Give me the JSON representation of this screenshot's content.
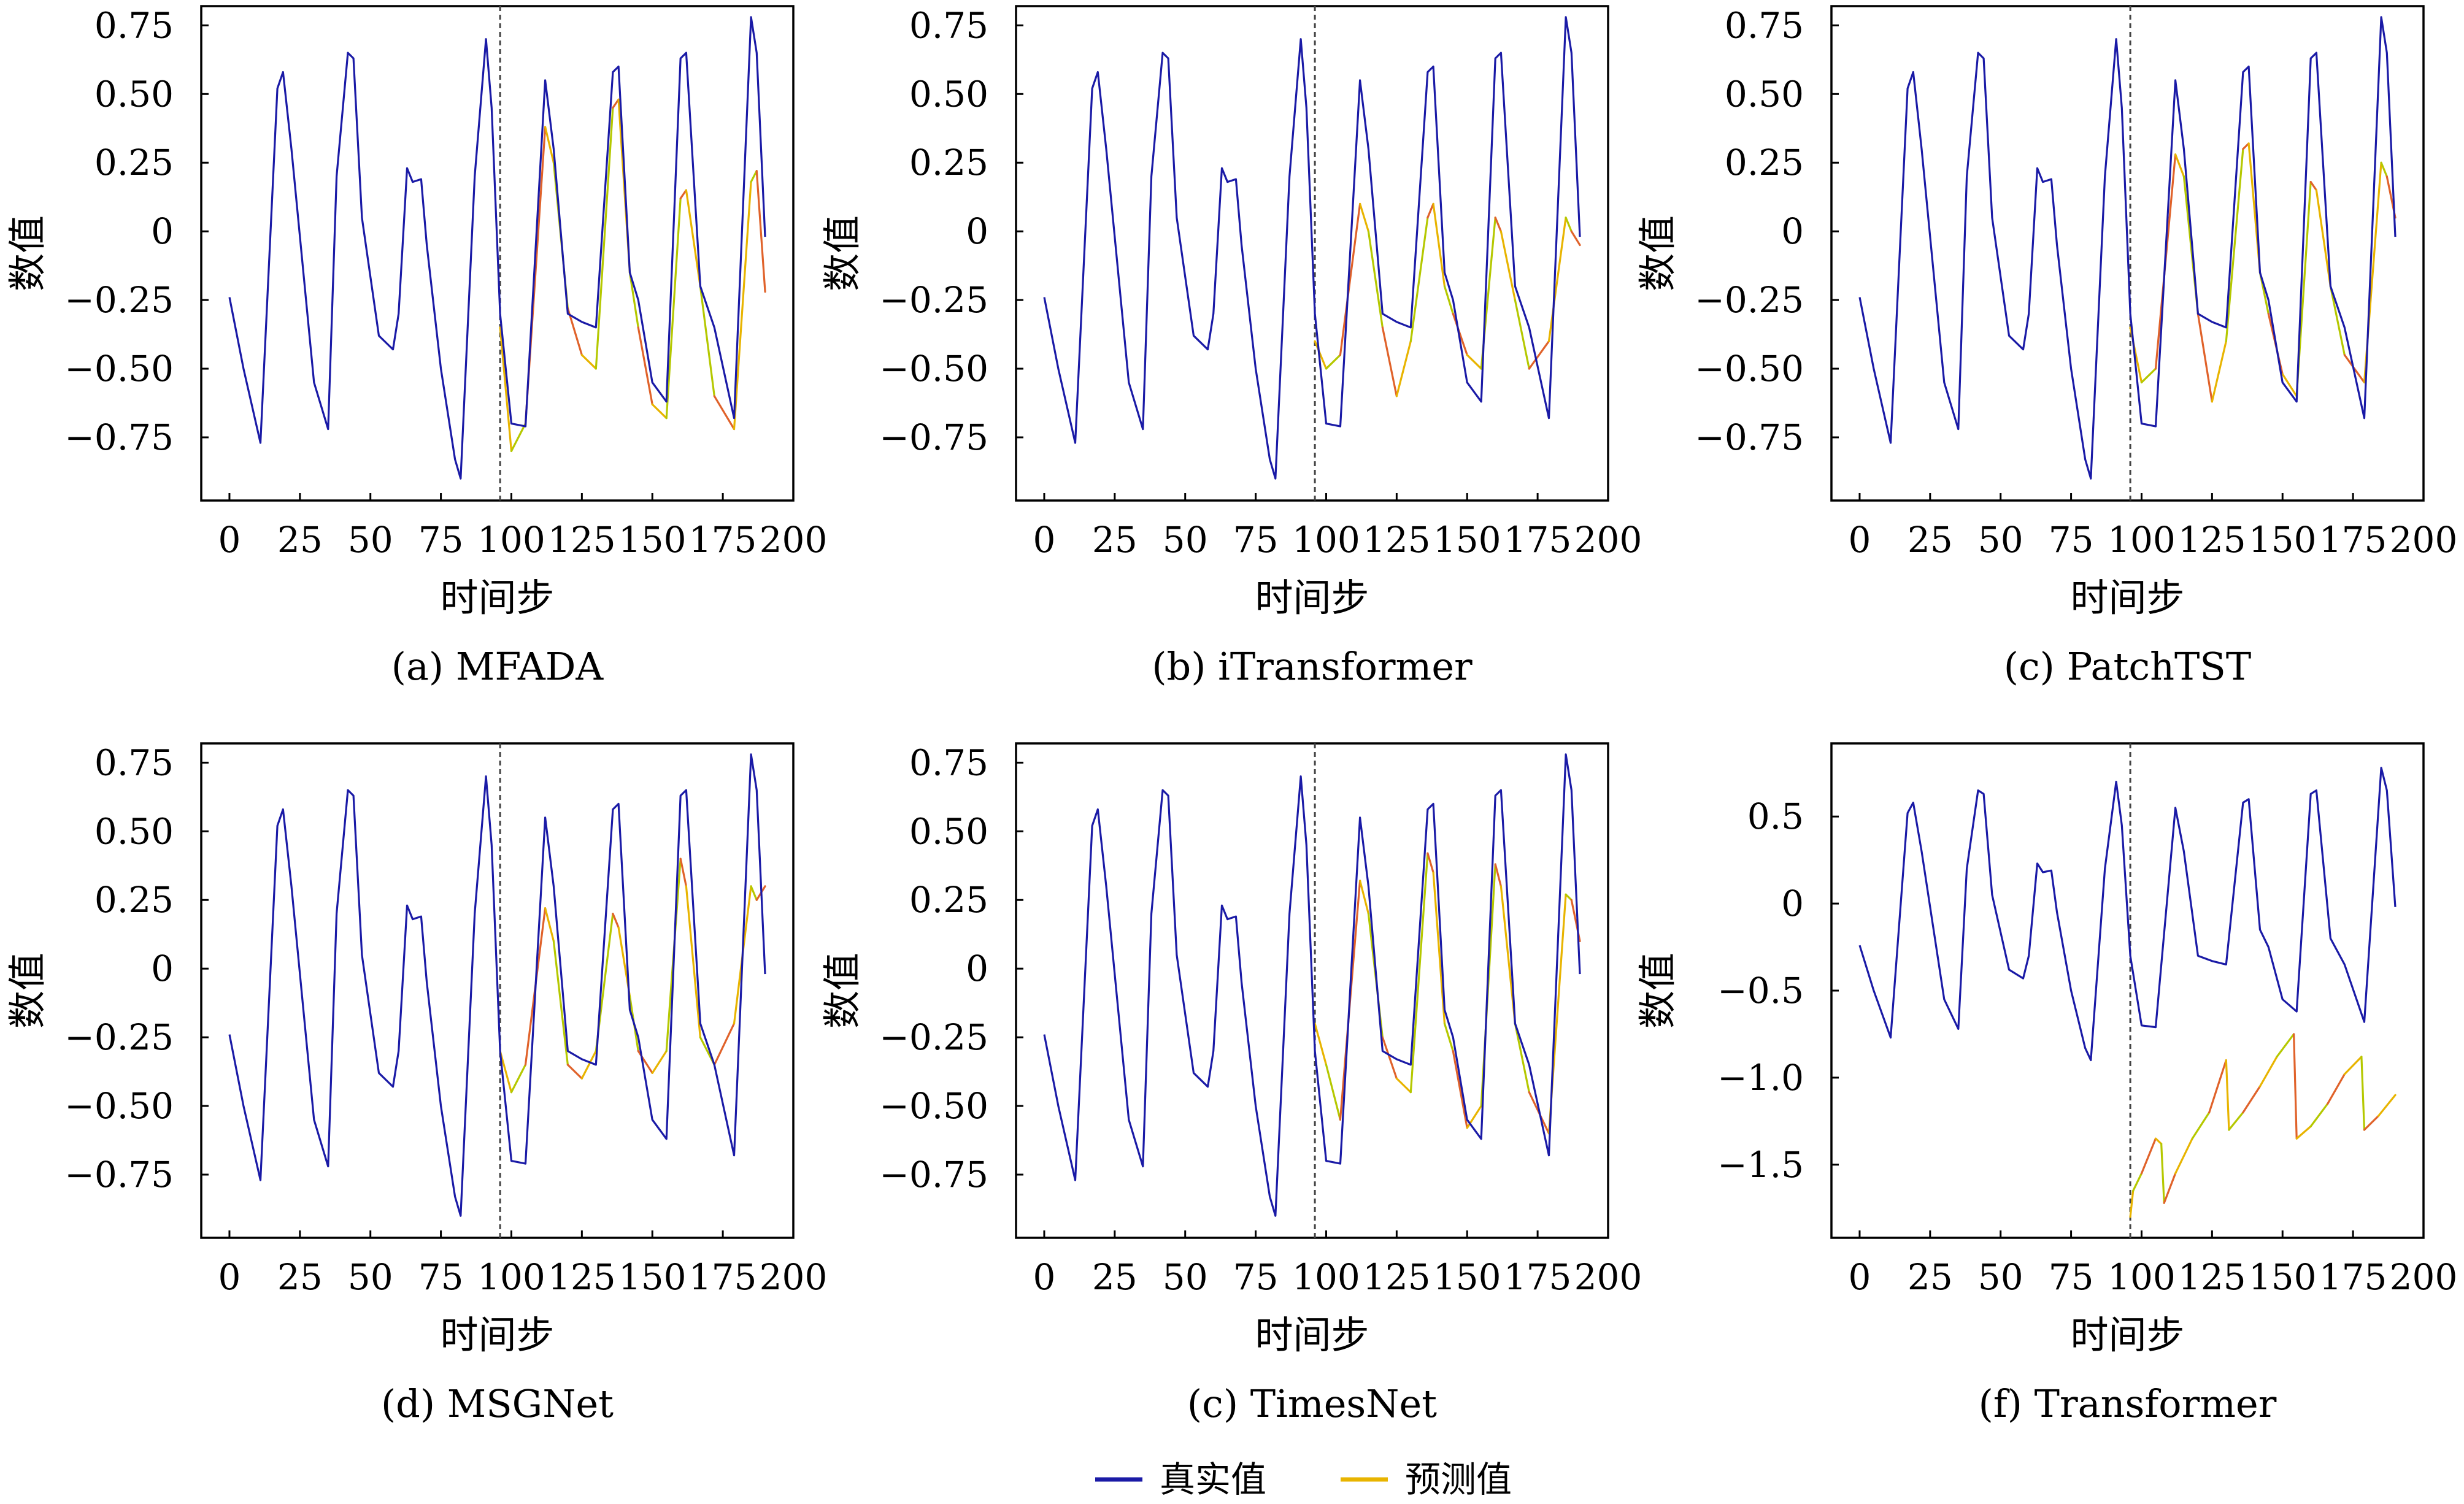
{
  "legend": {
    "items": [
      {
        "label": "真实值",
        "color": "#1a1aa6"
      },
      {
        "label": "预测值",
        "color": "#e8b400"
      }
    ]
  },
  "colors": {
    "actual": "#1a1aa6",
    "predicted_main": "#e8b400",
    "predicted_alt": "#b5c800",
    "predicted_err": "#e0622a",
    "split_line": "#444444"
  },
  "chart_data": [
    {
      "type": "line",
      "caption": "(a) MFADA",
      "xlabel": "时间步",
      "ylabel": "数值",
      "xlim": [
        -10,
        200
      ],
      "ylim": [
        -0.98,
        0.82
      ],
      "xticks": [
        0,
        25,
        50,
        75,
        100,
        125,
        150,
        175,
        200
      ],
      "yticks": [
        -0.75,
        -0.5,
        -0.25,
        0,
        0.25,
        0.5,
        0.75
      ],
      "ytick_labels": [
        "−0.75",
        "−0.50",
        "−0.25",
        "0",
        "0.25",
        "0.50",
        "0.75"
      ],
      "split_x": 96,
      "actual": {
        "x": [
          0,
          5,
          11,
          17,
          19,
          22,
          30,
          35,
          38,
          42,
          44,
          47,
          53,
          58,
          60,
          63,
          65,
          68,
          70,
          75,
          80,
          82,
          87,
          91,
          93,
          96,
          100,
          105,
          112,
          115,
          120,
          125,
          130,
          136,
          138,
          142,
          145,
          150,
          155,
          160,
          162,
          167,
          172,
          179,
          185,
          187,
          190
        ],
        "y": [
          -0.24,
          -0.5,
          -0.77,
          0.52,
          0.58,
          0.3,
          -0.55,
          -0.72,
          0.2,
          0.65,
          0.63,
          0.05,
          -0.38,
          -0.43,
          -0.3,
          0.23,
          0.18,
          0.19,
          -0.05,
          -0.5,
          -0.83,
          -0.9,
          0.2,
          0.7,
          0.45,
          -0.3,
          -0.7,
          -0.71,
          0.55,
          0.3,
          -0.3,
          -0.33,
          -0.35,
          0.58,
          0.6,
          -0.15,
          -0.25,
          -0.55,
          -0.62,
          0.63,
          0.65,
          -0.2,
          -0.35,
          -0.68,
          0.78,
          0.65,
          -0.02
        ]
      },
      "predicted": {
        "x": [
          96,
          100,
          105,
          112,
          115,
          120,
          125,
          130,
          136,
          138,
          142,
          145,
          150,
          155,
          160,
          162,
          167,
          172,
          179,
          185,
          187,
          190
        ],
        "y": [
          -0.35,
          -0.8,
          -0.7,
          0.38,
          0.25,
          -0.28,
          -0.45,
          -0.5,
          0.45,
          0.48,
          -0.15,
          -0.35,
          -0.63,
          -0.68,
          0.12,
          0.15,
          -0.2,
          -0.6,
          -0.72,
          0.18,
          0.22,
          -0.22
        ]
      }
    },
    {
      "type": "line",
      "caption": "(b) iTransformer",
      "xlabel": "时间步",
      "ylabel": "数值",
      "xlim": [
        -10,
        200
      ],
      "ylim": [
        -0.98,
        0.82
      ],
      "xticks": [
        0,
        25,
        50,
        75,
        100,
        125,
        150,
        175,
        200
      ],
      "yticks": [
        -0.75,
        -0.5,
        -0.25,
        0,
        0.25,
        0.5,
        0.75
      ],
      "ytick_labels": [
        "−0.75",
        "−0.50",
        "−0.25",
        "0",
        "0.25",
        "0.50",
        "0.75"
      ],
      "split_x": 96,
      "actual": {
        "x": [
          0,
          5,
          11,
          17,
          19,
          22,
          30,
          35,
          38,
          42,
          44,
          47,
          53,
          58,
          60,
          63,
          65,
          68,
          70,
          75,
          80,
          82,
          87,
          91,
          93,
          96,
          100,
          105,
          112,
          115,
          120,
          125,
          130,
          136,
          138,
          142,
          145,
          150,
          155,
          160,
          162,
          167,
          172,
          179,
          185,
          187,
          190
        ],
        "y": [
          -0.24,
          -0.5,
          -0.77,
          0.52,
          0.58,
          0.3,
          -0.55,
          -0.72,
          0.2,
          0.65,
          0.63,
          0.05,
          -0.38,
          -0.43,
          -0.3,
          0.23,
          0.18,
          0.19,
          -0.05,
          -0.5,
          -0.83,
          -0.9,
          0.2,
          0.7,
          0.45,
          -0.3,
          -0.7,
          -0.71,
          0.55,
          0.3,
          -0.3,
          -0.33,
          -0.35,
          0.58,
          0.6,
          -0.15,
          -0.25,
          -0.55,
          -0.62,
          0.63,
          0.65,
          -0.2,
          -0.35,
          -0.68,
          0.78,
          0.65,
          -0.02
        ]
      },
      "predicted": {
        "x": [
          96,
          100,
          105,
          112,
          115,
          120,
          125,
          130,
          136,
          138,
          142,
          145,
          150,
          155,
          160,
          162,
          167,
          172,
          179,
          185,
          187,
          190
        ],
        "y": [
          -0.4,
          -0.5,
          -0.45,
          0.1,
          0.0,
          -0.35,
          -0.6,
          -0.4,
          0.05,
          0.1,
          -0.2,
          -0.3,
          -0.45,
          -0.5,
          0.05,
          0.0,
          -0.25,
          -0.5,
          -0.4,
          0.05,
          0.0,
          -0.05
        ]
      }
    },
    {
      "type": "line",
      "caption": "(c) PatchTST",
      "xlabel": "时间步",
      "ylabel": "数值",
      "xlim": [
        -10,
        200
      ],
      "ylim": [
        -0.98,
        0.82
      ],
      "xticks": [
        0,
        25,
        50,
        75,
        100,
        125,
        150,
        175,
        200
      ],
      "yticks": [
        -0.75,
        -0.5,
        -0.25,
        0,
        0.25,
        0.5,
        0.75
      ],
      "ytick_labels": [
        "−0.75",
        "−0.50",
        "−0.25",
        "0",
        "0.25",
        "0.50",
        "0.75"
      ],
      "split_x": 96,
      "actual": {
        "x": [
          0,
          5,
          11,
          17,
          19,
          22,
          30,
          35,
          38,
          42,
          44,
          47,
          53,
          58,
          60,
          63,
          65,
          68,
          70,
          75,
          80,
          82,
          87,
          91,
          93,
          96,
          100,
          105,
          112,
          115,
          120,
          125,
          130,
          136,
          138,
          142,
          145,
          150,
          155,
          160,
          162,
          167,
          172,
          179,
          185,
          187,
          190
        ],
        "y": [
          -0.24,
          -0.5,
          -0.77,
          0.52,
          0.58,
          0.3,
          -0.55,
          -0.72,
          0.2,
          0.65,
          0.63,
          0.05,
          -0.38,
          -0.43,
          -0.3,
          0.23,
          0.18,
          0.19,
          -0.05,
          -0.5,
          -0.83,
          -0.9,
          0.2,
          0.7,
          0.45,
          -0.3,
          -0.7,
          -0.71,
          0.55,
          0.3,
          -0.3,
          -0.33,
          -0.35,
          0.58,
          0.6,
          -0.15,
          -0.25,
          -0.55,
          -0.62,
          0.63,
          0.65,
          -0.2,
          -0.35,
          -0.68,
          0.78,
          0.65,
          -0.02
        ]
      },
      "predicted": {
        "x": [
          96,
          100,
          105,
          112,
          115,
          120,
          125,
          130,
          136,
          138,
          142,
          145,
          150,
          155,
          160,
          162,
          167,
          172,
          179,
          185,
          187,
          190
        ],
        "y": [
          -0.35,
          -0.55,
          -0.5,
          0.28,
          0.2,
          -0.3,
          -0.62,
          -0.4,
          0.3,
          0.32,
          -0.15,
          -0.3,
          -0.52,
          -0.6,
          0.18,
          0.15,
          -0.2,
          -0.45,
          -0.55,
          0.25,
          0.2,
          0.05
        ]
      }
    },
    {
      "type": "line",
      "caption": "(d) MSGNet",
      "xlabel": "时间步",
      "ylabel": "数值",
      "xlim": [
        -10,
        200
      ],
      "ylim": [
        -0.98,
        0.82
      ],
      "xticks": [
        0,
        25,
        50,
        75,
        100,
        125,
        150,
        175,
        200
      ],
      "yticks": [
        -0.75,
        -0.5,
        -0.25,
        0,
        0.25,
        0.5,
        0.75
      ],
      "ytick_labels": [
        "−0.75",
        "−0.50",
        "−0.25",
        "0",
        "0.25",
        "0.50",
        "0.75"
      ],
      "split_x": 96,
      "actual": {
        "x": [
          0,
          5,
          11,
          17,
          19,
          22,
          30,
          35,
          38,
          42,
          44,
          47,
          53,
          58,
          60,
          63,
          65,
          68,
          70,
          75,
          80,
          82,
          87,
          91,
          93,
          96,
          100,
          105,
          112,
          115,
          120,
          125,
          130,
          136,
          138,
          142,
          145,
          150,
          155,
          160,
          162,
          167,
          172,
          179,
          185,
          187,
          190
        ],
        "y": [
          -0.24,
          -0.5,
          -0.77,
          0.52,
          0.58,
          0.3,
          -0.55,
          -0.72,
          0.2,
          0.65,
          0.63,
          0.05,
          -0.38,
          -0.43,
          -0.3,
          0.23,
          0.18,
          0.19,
          -0.05,
          -0.5,
          -0.83,
          -0.9,
          0.2,
          0.7,
          0.45,
          -0.3,
          -0.7,
          -0.71,
          0.55,
          0.3,
          -0.3,
          -0.33,
          -0.35,
          0.58,
          0.6,
          -0.15,
          -0.25,
          -0.55,
          -0.62,
          0.63,
          0.65,
          -0.2,
          -0.35,
          -0.68,
          0.78,
          0.65,
          -0.02
        ]
      },
      "predicted": {
        "x": [
          96,
          100,
          105,
          112,
          115,
          120,
          125,
          130,
          136,
          138,
          142,
          145,
          150,
          155,
          160,
          162,
          167,
          172,
          179,
          185,
          187,
          190
        ],
        "y": [
          -0.3,
          -0.45,
          -0.35,
          0.22,
          0.1,
          -0.35,
          -0.4,
          -0.3,
          0.2,
          0.15,
          -0.1,
          -0.3,
          -0.38,
          -0.3,
          0.4,
          0.3,
          -0.25,
          -0.35,
          -0.2,
          0.3,
          0.25,
          0.3
        ]
      }
    },
    {
      "type": "line",
      "caption": "(c) TimesNet",
      "xlabel": "时间步",
      "ylabel": "数值",
      "xlim": [
        -10,
        200
      ],
      "ylim": [
        -0.98,
        0.82
      ],
      "xticks": [
        0,
        25,
        50,
        75,
        100,
        125,
        150,
        175,
        200
      ],
      "yticks": [
        -0.75,
        -0.5,
        -0.25,
        0,
        0.25,
        0.5,
        0.75
      ],
      "ytick_labels": [
        "−0.75",
        "−0.50",
        "−0.25",
        "0",
        "0.25",
        "0.50",
        "0.75"
      ],
      "split_x": 96,
      "actual": {
        "x": [
          0,
          5,
          11,
          17,
          19,
          22,
          30,
          35,
          38,
          42,
          44,
          47,
          53,
          58,
          60,
          63,
          65,
          68,
          70,
          75,
          80,
          82,
          87,
          91,
          93,
          96,
          100,
          105,
          112,
          115,
          120,
          125,
          130,
          136,
          138,
          142,
          145,
          150,
          155,
          160,
          162,
          167,
          172,
          179,
          185,
          187,
          190
        ],
        "y": [
          -0.24,
          -0.5,
          -0.77,
          0.52,
          0.58,
          0.3,
          -0.55,
          -0.72,
          0.2,
          0.65,
          0.63,
          0.05,
          -0.38,
          -0.43,
          -0.3,
          0.23,
          0.18,
          0.19,
          -0.05,
          -0.5,
          -0.83,
          -0.9,
          0.2,
          0.7,
          0.45,
          -0.3,
          -0.7,
          -0.71,
          0.55,
          0.3,
          -0.3,
          -0.33,
          -0.35,
          0.58,
          0.6,
          -0.15,
          -0.25,
          -0.55,
          -0.62,
          0.63,
          0.65,
          -0.2,
          -0.35,
          -0.68,
          0.78,
          0.65,
          -0.02
        ]
      },
      "predicted": {
        "x": [
          96,
          100,
          105,
          112,
          115,
          120,
          125,
          130,
          136,
          138,
          142,
          145,
          150,
          155,
          160,
          162,
          167,
          172,
          179,
          185,
          187,
          190
        ],
        "y": [
          -0.2,
          -0.35,
          -0.55,
          0.32,
          0.2,
          -0.25,
          -0.4,
          -0.45,
          0.42,
          0.35,
          -0.2,
          -0.3,
          -0.58,
          -0.5,
          0.38,
          0.3,
          -0.2,
          -0.45,
          -0.6,
          0.27,
          0.25,
          0.1
        ]
      }
    },
    {
      "type": "line",
      "caption": "(f) Transformer",
      "xlabel": "时间步",
      "ylabel": "数值",
      "xlim": [
        -10,
        200
      ],
      "ylim": [
        -1.92,
        0.92
      ],
      "xticks": [
        0,
        25,
        50,
        75,
        100,
        125,
        150,
        175,
        200
      ],
      "yticks": [
        -1.5,
        -1.0,
        -0.5,
        0,
        0.5
      ],
      "ytick_labels": [
        "−1.5",
        "−1.0",
        "−0.5",
        "0",
        "0.5"
      ],
      "split_x": 96,
      "actual": {
        "x": [
          0,
          5,
          11,
          17,
          19,
          22,
          30,
          35,
          38,
          42,
          44,
          47,
          53,
          58,
          60,
          63,
          65,
          68,
          70,
          75,
          80,
          82,
          87,
          91,
          93,
          96,
          100,
          105,
          112,
          115,
          120,
          125,
          130,
          136,
          138,
          142,
          145,
          150,
          155,
          160,
          162,
          167,
          172,
          179,
          185,
          187,
          190
        ],
        "y": [
          -0.24,
          -0.5,
          -0.77,
          0.52,
          0.58,
          0.3,
          -0.55,
          -0.72,
          0.2,
          0.65,
          0.63,
          0.05,
          -0.38,
          -0.43,
          -0.3,
          0.23,
          0.18,
          0.19,
          -0.05,
          -0.5,
          -0.83,
          -0.9,
          0.2,
          0.7,
          0.45,
          -0.3,
          -0.7,
          -0.71,
          0.55,
          0.3,
          -0.3,
          -0.33,
          -0.35,
          0.58,
          0.6,
          -0.15,
          -0.25,
          -0.55,
          -0.62,
          0.63,
          0.65,
          -0.2,
          -0.35,
          -0.68,
          0.78,
          0.65,
          -0.02
        ]
      },
      "predicted": {
        "x": [
          96,
          97,
          100,
          105,
          107,
          108,
          112,
          118,
          124,
          130,
          131,
          136,
          142,
          148,
          154,
          155,
          160,
          166,
          172,
          178,
          179,
          184,
          190
        ],
        "y": [
          -1.8,
          -1.65,
          -1.55,
          -1.35,
          -1.38,
          -1.72,
          -1.55,
          -1.35,
          -1.2,
          -0.9,
          -1.3,
          -1.2,
          -1.05,
          -0.88,
          -0.75,
          -1.35,
          -1.28,
          -1.15,
          -0.98,
          -0.88,
          -1.3,
          -1.22,
          -1.1
        ]
      }
    }
  ]
}
